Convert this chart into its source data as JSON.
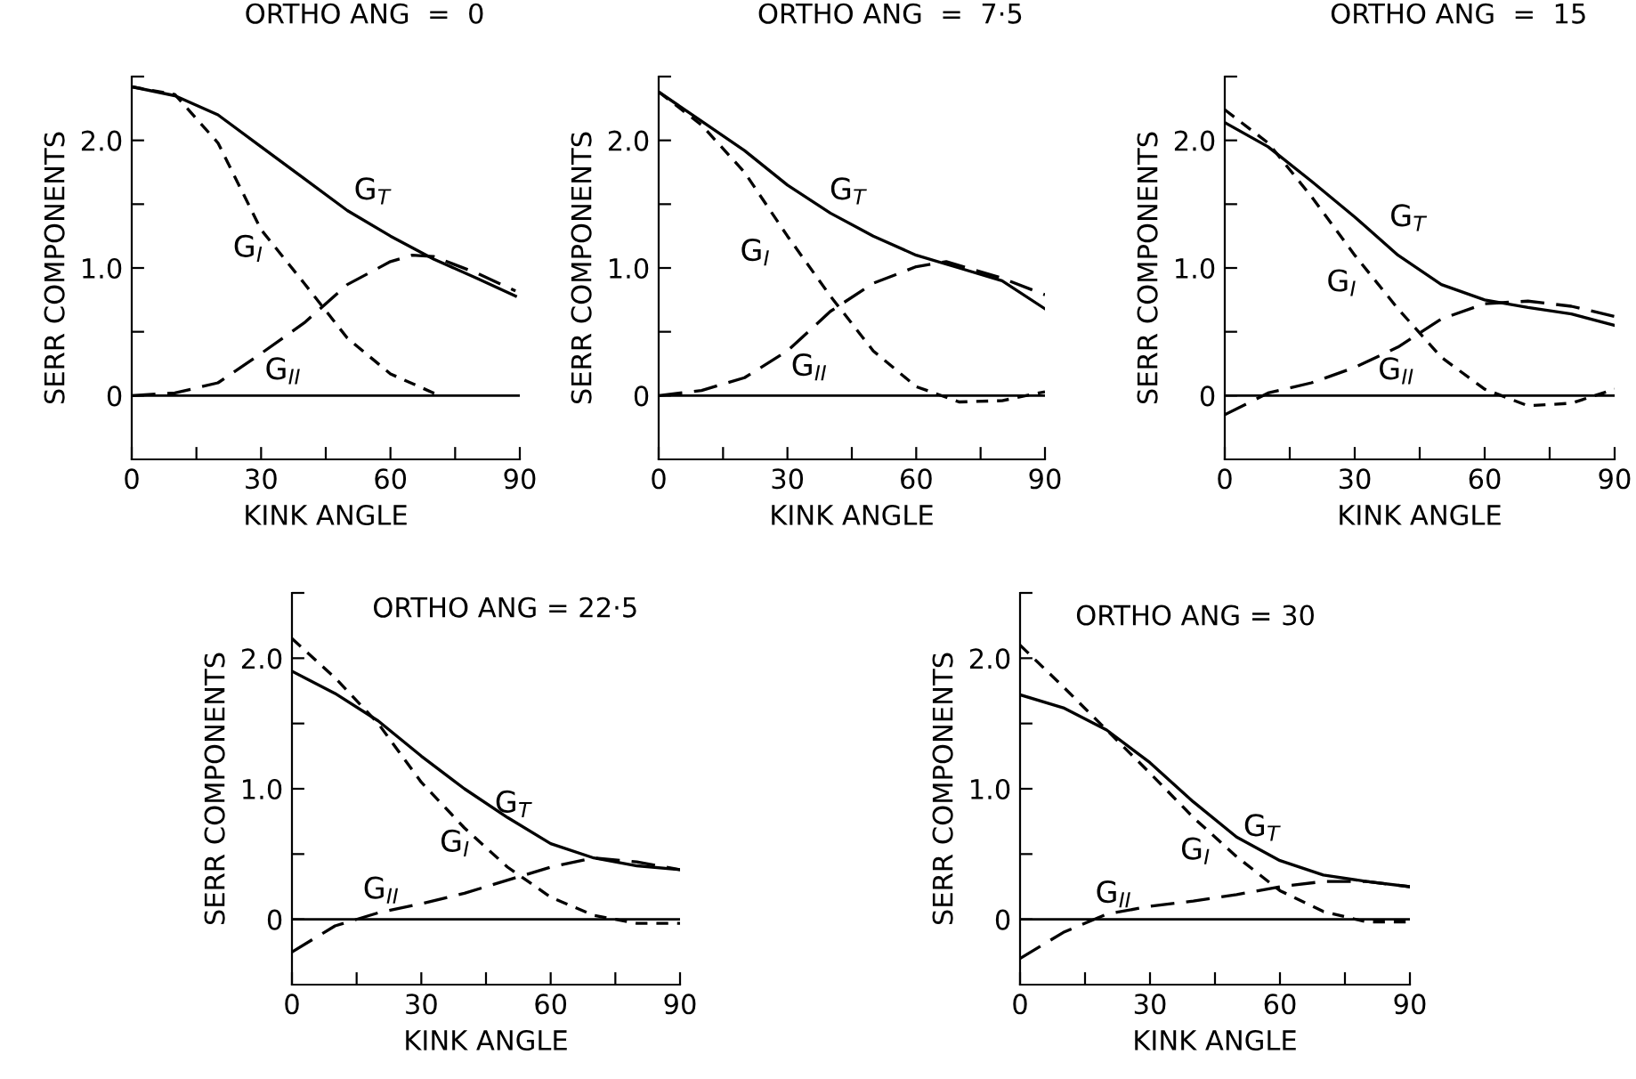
{
  "chart_data": [
    {
      "type": "line",
      "title": "ORTHO ANG  =  0",
      "xlabel": "KINK ANGLE",
      "ylabel": "SERR COMPONENTS",
      "xlim": [
        0,
        90
      ],
      "ylim": [
        -0.5,
        2.5
      ],
      "xticks": [
        0,
        {
          "value": 15,
          "label": null
        },
        30,
        {
          "value": 45,
          "label": null
        },
        60,
        {
          "value": 75,
          "label": null
        },
        90
      ],
      "yticks": [
        0,
        {
          "value": 0.5,
          "label": null
        },
        {
          "value": 1,
          "label": "1.0"
        },
        {
          "value": 1.5,
          "label": null
        },
        {
          "value": 2,
          "label": "2.0"
        },
        {
          "value": 2.5,
          "label": null
        }
      ],
      "ref_lines": [
        {
          "axis": "y",
          "value": 0,
          "color": "#000000"
        }
      ],
      "grid": false,
      "legend": false,
      "series": [
        {
          "name": "G$_{T}$",
          "color": "#000000",
          "line_style": "solid",
          "x": [
            0,
            10,
            20,
            30,
            40,
            50,
            60,
            70,
            80,
            89
          ],
          "values": [
            2.42,
            2.35,
            2.2,
            1.95,
            1.7,
            1.45,
            1.25,
            1.07,
            0.92,
            0.78
          ]
        },
        {
          "name": "G$_{I}$",
          "color": "#000000",
          "line_style": "dashed",
          "x": [
            0,
            10,
            20,
            30,
            40,
            50,
            60,
            70,
            72
          ],
          "values": [
            2.42,
            2.36,
            1.98,
            1.3,
            0.88,
            0.45,
            0.17,
            0.02,
            0
          ]
        },
        {
          "name": "G$_{II}$",
          "color": "#000000",
          "line_style": "dashed",
          "x": [
            0,
            10,
            20,
            30,
            40,
            50,
            60,
            65,
            70,
            80,
            89
          ],
          "values": [
            0,
            0.02,
            0.1,
            0.33,
            0.57,
            0.87,
            1.05,
            1.1,
            1.09,
            0.96,
            0.82
          ]
        }
      ]
    },
    {
      "type": "line",
      "title": "ORTHO ANG  =  7·5",
      "xlabel": "KINK ANGLE",
      "ylabel": "SERR COMPONENTS",
      "xlim": [
        0,
        90
      ],
      "ylim": [
        -0.5,
        2.5
      ],
      "xticks": [
        0,
        {
          "value": 15,
          "label": null
        },
        30,
        {
          "value": 45,
          "label": null
        },
        60,
        {
          "value": 75,
          "label": null
        },
        90
      ],
      "yticks": [
        0,
        {
          "value": 0.5,
          "label": null
        },
        {
          "value": 1,
          "label": "1.0"
        },
        {
          "value": 1.5,
          "label": null
        },
        {
          "value": 2,
          "label": "2.0"
        },
        {
          "value": 2.5,
          "label": null
        }
      ],
      "ref_lines": [
        {
          "axis": "y",
          "value": 0,
          "color": "#000000"
        }
      ],
      "grid": false,
      "legend": false,
      "series": [
        {
          "name": "G$_{T}$",
          "color": "#000000",
          "line_style": "solid",
          "x": [
            0,
            10,
            20,
            30,
            40,
            50,
            60,
            70,
            80,
            90
          ],
          "values": [
            2.38,
            2.15,
            1.92,
            1.65,
            1.43,
            1.25,
            1.1,
            1.0,
            0.9,
            0.68
          ]
        },
        {
          "name": "G$_{I}$",
          "color": "#000000",
          "line_style": "dashed",
          "x": [
            0,
            10,
            20,
            30,
            40,
            50,
            60,
            70,
            80,
            90
          ],
          "values": [
            2.38,
            2.12,
            1.75,
            1.25,
            0.78,
            0.35,
            0.07,
            -0.05,
            -0.04,
            0.03
          ]
        },
        {
          "name": "G$_{II}$",
          "color": "#000000",
          "line_style": "dashed",
          "x": [
            0,
            10,
            20,
            30,
            40,
            50,
            60,
            67,
            80,
            90
          ],
          "values": [
            0,
            0.04,
            0.14,
            0.35,
            0.66,
            0.88,
            1.01,
            1.05,
            0.92,
            0.79
          ]
        }
      ]
    },
    {
      "type": "line",
      "title": "ORTHO ANG  =  15",
      "xlabel": "KINK ANGLE",
      "ylabel": "SERR COMPONENTS",
      "xlim": [
        0,
        90
      ],
      "ylim": [
        -0.5,
        2.5
      ],
      "xticks": [
        0,
        {
          "value": 15,
          "label": null
        },
        30,
        {
          "value": 45,
          "label": null
        },
        60,
        {
          "value": 75,
          "label": null
        },
        90
      ],
      "yticks": [
        0,
        {
          "value": 0.5,
          "label": null
        },
        {
          "value": 1,
          "label": "1.0"
        },
        {
          "value": 1.5,
          "label": null
        },
        {
          "value": 2,
          "label": "2.0"
        },
        {
          "value": 2.5,
          "label": null
        }
      ],
      "ref_lines": [
        {
          "axis": "y",
          "value": 0,
          "color": "#000000"
        }
      ],
      "grid": false,
      "legend": false,
      "series": [
        {
          "name": "G$_{T}$",
          "color": "#000000",
          "line_style": "solid",
          "x": [
            0,
            10,
            20,
            30,
            40,
            50,
            60,
            70,
            80,
            90
          ],
          "values": [
            2.14,
            1.95,
            1.68,
            1.4,
            1.1,
            0.87,
            0.75,
            0.69,
            0.64,
            0.55
          ]
        },
        {
          "name": "G$_{I}$",
          "color": "#000000",
          "line_style": "dashed",
          "x": [
            0,
            10,
            20,
            30,
            40,
            50,
            60,
            70,
            80,
            90
          ],
          "values": [
            2.24,
            1.98,
            1.56,
            1.1,
            0.68,
            0.3,
            0.05,
            -0.08,
            -0.06,
            0.05
          ]
        },
        {
          "name": "G$_{II}$",
          "color": "#000000",
          "line_style": "dashed",
          "x": [
            0,
            10,
            20,
            30,
            40,
            50,
            60,
            70,
            80,
            90
          ],
          "values": [
            -0.15,
            0.02,
            0.1,
            0.22,
            0.38,
            0.6,
            0.72,
            0.74,
            0.7,
            0.62
          ]
        }
      ]
    },
    {
      "type": "line",
      "title": "ORTHO ANG = 22·5",
      "xlabel": "KINK ANGLE",
      "ylabel": "SERR COMPONENTS",
      "xlim": [
        0,
        90
      ],
      "ylim": [
        -0.5,
        2.5
      ],
      "xticks": [
        0,
        {
          "value": 15,
          "label": null
        },
        30,
        {
          "value": 45,
          "label": null
        },
        60,
        {
          "value": 75,
          "label": null
        },
        90
      ],
      "yticks": [
        0,
        {
          "value": 0.5,
          "label": null
        },
        {
          "value": 1,
          "label": "1.0"
        },
        {
          "value": 1.5,
          "label": null
        },
        {
          "value": 2,
          "label": "2.0"
        },
        {
          "value": 2.5,
          "label": null
        }
      ],
      "ref_lines": [
        {
          "axis": "y",
          "value": 0,
          "color": "#000000"
        }
      ],
      "grid": false,
      "legend": false,
      "series": [
        {
          "name": "G$_{T}$",
          "color": "#000000",
          "line_style": "solid",
          "x": [
            0,
            10,
            20,
            30,
            40,
            50,
            60,
            70,
            80,
            90
          ],
          "values": [
            1.9,
            1.73,
            1.52,
            1.25,
            1.0,
            0.78,
            0.58,
            0.47,
            0.41,
            0.38
          ]
        },
        {
          "name": "G$_{I}$",
          "color": "#000000",
          "line_style": "dashed",
          "x": [
            0,
            10,
            20,
            30,
            40,
            50,
            60,
            70,
            80,
            90
          ],
          "values": [
            2.15,
            1.85,
            1.5,
            1.05,
            0.7,
            0.4,
            0.17,
            0.03,
            -0.03,
            -0.03
          ]
        },
        {
          "name": "G$_{II}$",
          "color": "#000000",
          "line_style": "dashed",
          "x": [
            0,
            10,
            20,
            30,
            40,
            50,
            60,
            70,
            80,
            90
          ],
          "values": [
            -0.25,
            -0.05,
            0.05,
            0.12,
            0.2,
            0.3,
            0.4,
            0.47,
            0.44,
            0.38
          ]
        }
      ]
    },
    {
      "type": "line",
      "title": "ORTHO ANG = 30",
      "xlabel": "KINK ANGLE",
      "ylabel": "SERR COMPONENTS",
      "xlim": [
        0,
        90
      ],
      "ylim": [
        -0.5,
        2.5
      ],
      "xticks": [
        0,
        {
          "value": 15,
          "label": null
        },
        30,
        {
          "value": 45,
          "label": null
        },
        60,
        {
          "value": 75,
          "label": null
        },
        90
      ],
      "yticks": [
        0,
        {
          "value": 0.5,
          "label": null
        },
        {
          "value": 1,
          "label": "1.0"
        },
        {
          "value": 1.5,
          "label": null
        },
        {
          "value": 2,
          "label": "2.0"
        },
        {
          "value": 2.5,
          "label": null
        }
      ],
      "ref_lines": [
        {
          "axis": "y",
          "value": 0,
          "color": "#000000"
        }
      ],
      "grid": false,
      "legend": false,
      "series": [
        {
          "name": "G$_{T}$",
          "color": "#000000",
          "line_style": "solid",
          "x": [
            0,
            10,
            20,
            30,
            40,
            50,
            60,
            70,
            80,
            90
          ],
          "values": [
            1.72,
            1.62,
            1.45,
            1.2,
            0.9,
            0.63,
            0.45,
            0.34,
            0.29,
            0.25
          ]
        },
        {
          "name": "G$_{I}$",
          "color": "#000000",
          "line_style": "dashed",
          "x": [
            0,
            10,
            20,
            30,
            40,
            50,
            60,
            70,
            80,
            90
          ],
          "values": [
            2.1,
            1.78,
            1.45,
            1.12,
            0.78,
            0.48,
            0.22,
            0.06,
            -0.02,
            -0.02
          ]
        },
        {
          "name": "G$_{II}$",
          "color": "#000000",
          "line_style": "dashed",
          "x": [
            0,
            10,
            20,
            30,
            40,
            50,
            60,
            70,
            80,
            90
          ],
          "values": [
            -0.3,
            -0.1,
            0.04,
            0.1,
            0.14,
            0.19,
            0.25,
            0.29,
            0.29,
            0.25
          ]
        }
      ]
    }
  ]
}
